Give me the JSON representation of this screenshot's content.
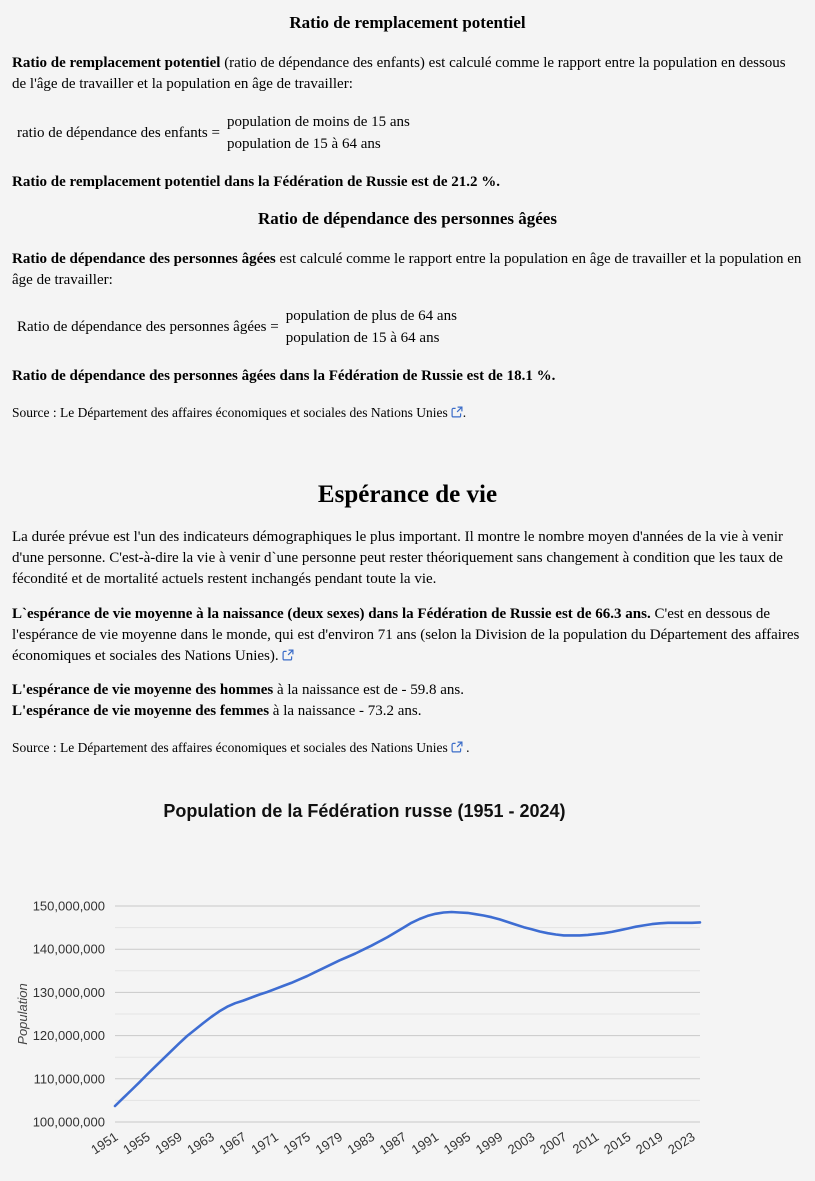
{
  "replacement": {
    "title": "Ratio de remplacement potentiel",
    "para_bold": "Ratio de remplacement potentiel",
    "para_rest": " (ratio de dépendance des enfants) est calculé comme le rapport entre la population en dessous de l'âge de travailler et la population en âge de travailler:",
    "formula_label": "ratio de dépendance des enfants =",
    "formula_numerator": "population de moins de 15 ans",
    "formula_denominator": "population de 15 à 64 ans",
    "result": "Ratio de remplacement potentiel dans la Fédération de Russie est de 21.2 %."
  },
  "elderly": {
    "title": "Ratio de dépendance des personnes âgées",
    "para_bold": "Ratio de dépendance des personnes âgées",
    "para_rest": " est calculé comme le rapport entre la population en âge de travailler et la population en âge de travailler:",
    "formula_label": "Ratio de dépendance des personnes âgées =",
    "formula_numerator": "population de plus de 64 ans",
    "formula_denominator": "population de 15 à 64 ans",
    "result": "Ratio de dépendance des personnes âgées dans la Fédération de Russie est de 18.1 %.",
    "source_prefix": "Source : Le Département des affaires économiques et sociales des Nations Unies",
    "source_suffix": "."
  },
  "life": {
    "title": "Espérance de vie",
    "para1": "La durée prévue est l'un des indicateurs démographiques le plus important. Il montre le nombre moyen d'années de la vie à venir d'une personne. C'est-à-dire la vie à venir d`une personne peut rester théoriquement sans changement à condition que les taux de fécondité et de mortalité actuels restent inchangés pendant toute la vie.",
    "para2_bold": "L`espérance de vie moyenne à la naissance (deux sexes) dans la Fédération de Russie est de 66.3 ans.",
    "para2_rest": " C'est en dessous de l'espérance de vie moyenne dans le monde, qui est d'environ 71 ans (selon la Division de la population du Département des affaires économiques et sociales des Nations Unies).",
    "men_bold": "L'espérance de vie moyenne des hommes",
    "men_rest": " à la naissance est de - 59.8 ans.",
    "women_bold": "L'espérance de vie moyenne des femmes",
    "women_rest": " à la naissance - 73.2 ans.",
    "source_prefix": "Source : Le Département des affaires économiques et sociales des Nations Unies",
    "source_suffix": " ."
  },
  "chart_data": {
    "type": "line",
    "title": "Population de la Fédération russe (1951 - 2024)",
    "xlabel": "",
    "ylabel": "Population",
    "ylim": [
      100000000,
      150000000
    ],
    "y_major_step": 10000000,
    "y_minor_step": 5000000,
    "grid": "on",
    "legend": "none",
    "line_color": "#3e6dd2",
    "grid_major_color": "#c9c9c9",
    "grid_minor_color": "#e3e3e3",
    "axis_text_color": "#333333",
    "x_ticks": [
      1951,
      1955,
      1959,
      1963,
      1967,
      1971,
      1975,
      1979,
      1983,
      1987,
      1991,
      1995,
      1999,
      2003,
      2007,
      2011,
      2015,
      2019,
      2023
    ],
    "years": [
      1951,
      1952,
      1953,
      1954,
      1955,
      1956,
      1957,
      1958,
      1959,
      1960,
      1961,
      1962,
      1963,
      1964,
      1965,
      1966,
      1967,
      1968,
      1969,
      1970,
      1971,
      1972,
      1973,
      1974,
      1975,
      1976,
      1977,
      1978,
      1979,
      1980,
      1981,
      1982,
      1983,
      1984,
      1985,
      1986,
      1987,
      1988,
      1989,
      1990,
      1991,
      1992,
      1993,
      1994,
      1995,
      1996,
      1997,
      1998,
      1999,
      2000,
      2001,
      2002,
      2003,
      2004,
      2005,
      2006,
      2007,
      2008,
      2009,
      2010,
      2011,
      2012,
      2013,
      2014,
      2015,
      2016,
      2017,
      2018,
      2019,
      2020,
      2021,
      2022,
      2023,
      2024
    ],
    "values": [
      103700000,
      105500000,
      107300000,
      109100000,
      111000000,
      112800000,
      114600000,
      116400000,
      118200000,
      119900000,
      121400000,
      122900000,
      124300000,
      125600000,
      126700000,
      127500000,
      128100000,
      128800000,
      129500000,
      130100000,
      130800000,
      131500000,
      132200000,
      133000000,
      133800000,
      134700000,
      135600000,
      136500000,
      137400000,
      138200000,
      139000000,
      139900000,
      140800000,
      141800000,
      142800000,
      143900000,
      145000000,
      146100000,
      147000000,
      147700000,
      148200000,
      148500000,
      148600000,
      148500000,
      148400000,
      148100000,
      147800000,
      147400000,
      146900000,
      146300000,
      145700000,
      145100000,
      144600000,
      144100000,
      143700000,
      143400000,
      143200000,
      143200000,
      143200000,
      143300000,
      143500000,
      143700000,
      144000000,
      144400000,
      144800000,
      145200000,
      145500000,
      145800000,
      146000000,
      146100000,
      146100000,
      146100000,
      146100000,
      146200000
    ]
  }
}
